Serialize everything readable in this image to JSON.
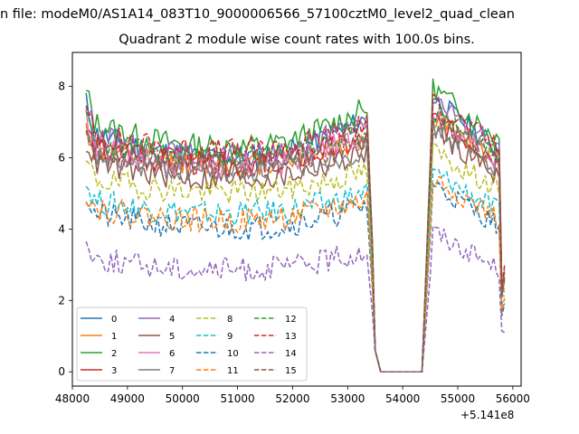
{
  "suptitle": "n file: modeM0/AS1A14_083T10_9000006566_57100cztM0_level2_quad_clean",
  "title": "Quadrant 2 module wise count rates with 100.0s bins.",
  "x_offset_label": "+5.141e8",
  "chart_data": {
    "type": "line",
    "title": "Quadrant 2 module wise count rates with 100.0s bins.",
    "xlabel": "",
    "ylabel": "",
    "x_offset": 514100000,
    "xlim": [
      48000,
      56150
    ],
    "ylim": [
      -0.4,
      8.95
    ],
    "xticks": [
      48000,
      49000,
      50000,
      51000,
      52000,
      53000,
      54000,
      55000,
      56000
    ],
    "yticks": [
      0,
      2,
      4,
      6,
      8
    ],
    "grid": false,
    "legend_position": "lower-left",
    "legend_columns": 4,
    "series": [
      {
        "name": "0",
        "color": "#1f77b4",
        "dash": "solid",
        "base": 6.3,
        "amp": 0.85,
        "seed": 11
      },
      {
        "name": "1",
        "color": "#ff7f0e",
        "dash": "solid",
        "base": 6.0,
        "amp": 0.55,
        "seed": 12
      },
      {
        "name": "2",
        "color": "#2ca02c",
        "dash": "solid",
        "base": 6.6,
        "amp": 0.85,
        "seed": 13
      },
      {
        "name": "3",
        "color": "#d62728",
        "dash": "solid",
        "base": 6.0,
        "amp": 0.55,
        "seed": 14
      },
      {
        "name": "4",
        "color": "#9467bd",
        "dash": "solid",
        "base": 6.3,
        "amp": 0.8,
        "seed": 15
      },
      {
        "name": "5",
        "color": "#8c564b",
        "dash": "solid",
        "base": 5.6,
        "amp": 0.6,
        "seed": 16
      },
      {
        "name": "6",
        "color": "#e377c2",
        "dash": "solid",
        "base": 6.0,
        "amp": 0.75,
        "seed": 17
      },
      {
        "name": "7",
        "color": "#7f7f7f",
        "dash": "solid",
        "base": 5.8,
        "amp": 0.5,
        "seed": 18
      },
      {
        "name": "8",
        "color": "#bcbd22",
        "dash": "dashed",
        "base": 5.2,
        "amp": 0.45,
        "seed": 19
      },
      {
        "name": "9",
        "color": "#17becf",
        "dash": "dashed",
        "base": 4.6,
        "amp": 0.45,
        "seed": 20
      },
      {
        "name": "10",
        "color": "#1f77b4",
        "dash": "dashed",
        "base": 4.2,
        "amp": 0.5,
        "seed": 21
      },
      {
        "name": "11",
        "color": "#ff7f0e",
        "dash": "dashed",
        "base": 4.4,
        "amp": 0.45,
        "seed": 22
      },
      {
        "name": "12",
        "color": "#2ca02c",
        "dash": "dashed",
        "base": 6.2,
        "amp": 0.55,
        "seed": 23
      },
      {
        "name": "13",
        "color": "#d62728",
        "dash": "dashed",
        "base": 6.4,
        "amp": 0.6,
        "seed": 24
      },
      {
        "name": "14",
        "color": "#9467bd",
        "dash": "dashed",
        "base": 3.0,
        "amp": 0.4,
        "seed": 25
      },
      {
        "name": "15",
        "color": "#8c564b",
        "dash": "dashed",
        "base": 6.0,
        "amp": 0.55,
        "seed": 26
      }
    ]
  }
}
